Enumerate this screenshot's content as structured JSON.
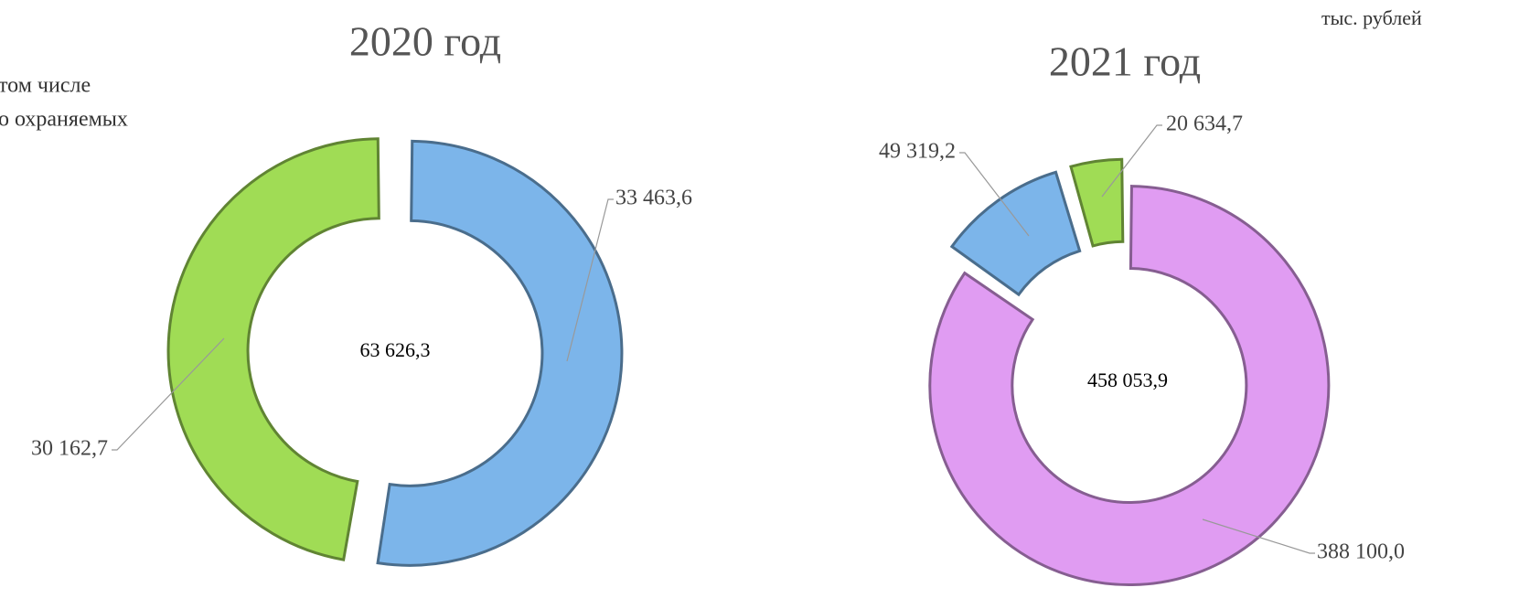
{
  "unit_label": "тыс. рублей",
  "annotation": [
    "том числе",
    "о охраняемых"
  ],
  "chart_data": [
    {
      "type": "donut",
      "title": "2020 год",
      "values": [
        33463.6,
        30162.7
      ],
      "value_labels": [
        "33 463,6",
        "30 162,7"
      ],
      "colors": [
        "#7cb5ea",
        "#a0dc55"
      ],
      "total": 63626.3,
      "total_label": "63 626,3"
    },
    {
      "type": "donut",
      "title": "2021 год",
      "values": [
        388100.0,
        49319.2,
        20634.7
      ],
      "value_labels": [
        "388 100,0",
        "49 319,2",
        "20 634,7"
      ],
      "colors": [
        "#e09cf2",
        "#7cb5ea",
        "#a0dc55"
      ],
      "total": 458053.9,
      "total_label": "458 053,9"
    }
  ]
}
